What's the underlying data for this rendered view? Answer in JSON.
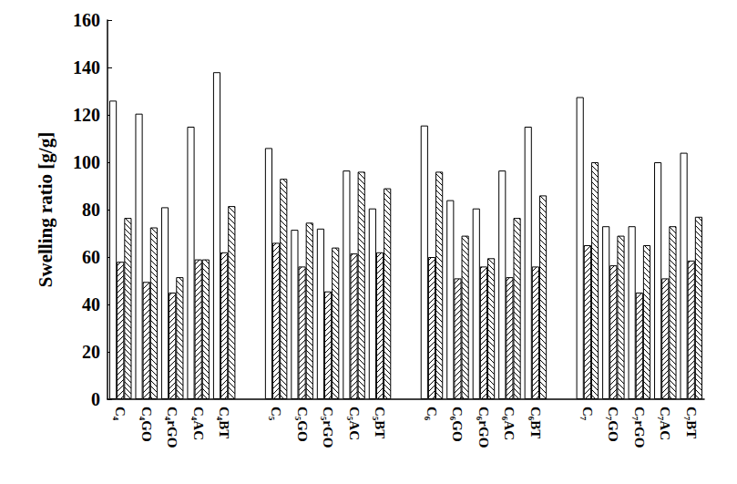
{
  "chart_data": {
    "type": "bar",
    "y_label": "Swelling ratio [g/g]",
    "categories": [
      "C₄",
      "C₄GO",
      "C₄rGO",
      "C₄AC",
      "C₄BT",
      null,
      "C₅",
      "C₅GO",
      "C₅rGO",
      "C₅AC",
      "C₅BT",
      null,
      "C₆",
      "C₆GO",
      "C₆rGO",
      "C₆AC",
      "C₆BT",
      null,
      "C₇",
      "C₇GO",
      "C₇rGO",
      "C₇AC",
      "C₇BT"
    ],
    "series": [
      {
        "color": "#ffffff",
        "marker": "none",
        "values": [
          126,
          120.5,
          81,
          115,
          138,
          null,
          106,
          71.5,
          72,
          96.5,
          80.5,
          null,
          115.5,
          84,
          80.5,
          96.5,
          115,
          null,
          127.5,
          73,
          73,
          100,
          104
        ]
      },
      {
        "color": "#ffffff",
        "marker": "slash",
        "values": [
          58,
          49.5,
          45,
          59,
          62,
          null,
          66,
          56,
          45.5,
          61.5,
          62,
          null,
          60,
          51,
          56,
          51.5,
          56,
          null,
          65,
          56.5,
          45,
          51,
          58.5
        ]
      },
      {
        "color": "#ffffff",
        "marker": "backslash",
        "values": [
          76.5,
          72.5,
          51.5,
          59,
          81.5,
          null,
          93,
          74.5,
          64,
          96,
          89,
          null,
          96,
          69,
          59.5,
          76.5,
          86,
          null,
          100,
          69,
          65,
          73,
          77
        ]
      }
    ],
    "ylim": [
      0,
      160
    ],
    "yticks": [
      0,
      20,
      40,
      60,
      80,
      100,
      120,
      140,
      160
    ],
    "grid": false
  }
}
